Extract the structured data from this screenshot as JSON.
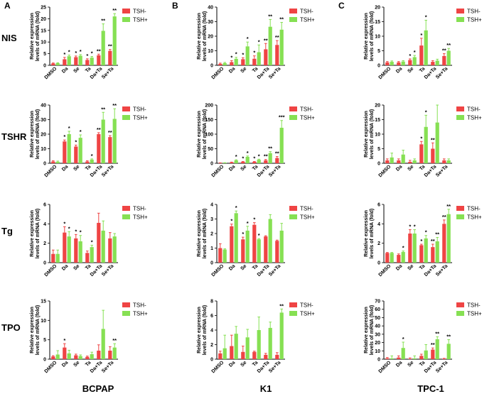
{
  "figure": {
    "panel_labels": [
      "A",
      "B",
      "C"
    ],
    "row_labels": [
      "NIS",
      "TSHR",
      "Tg",
      "TPO"
    ],
    "column_labels": [
      "BCPAP",
      "K1",
      "TPC-1"
    ],
    "colors": {
      "tsh_minus": "#ef4444",
      "tsh_plus": "#86e053"
    }
  },
  "chart_data": [
    {
      "type": "bar",
      "row": "NIS",
      "column": "BCPAP",
      "categories": [
        "DMSO",
        "Da",
        "Se",
        "Ta",
        "Da+Ta",
        "Se+Ta"
      ],
      "ylabel": "Relative expression levels of mRNA (fold)",
      "ylim": [
        0,
        25
      ],
      "yticks": [
        0,
        5,
        10,
        15,
        20,
        25
      ],
      "legend": "top-right",
      "series": [
        {
          "name": "TSH-",
          "values": [
            0.8,
            2.6,
            3.5,
            2.3,
            4.3,
            6.2
          ],
          "errors": [
            0.2,
            0.8,
            0.5,
            0.5,
            0.5,
            0.6
          ],
          "marks": [
            "",
            "*",
            "*",
            "*",
            "**",
            "**"
          ]
        },
        {
          "name": "TSH+",
          "values": [
            0.9,
            3.9,
            4.1,
            3.3,
            14.8,
            21.0
          ],
          "errors": [
            0.2,
            0.5,
            0.5,
            0.5,
            3.0,
            1.2
          ],
          "marks": [
            "",
            "*",
            "*",
            "*",
            "**",
            "**"
          ]
        }
      ]
    },
    {
      "type": "bar",
      "row": "NIS",
      "column": "K1",
      "categories": [
        "DMSO",
        "Da",
        "Se",
        "Ta",
        "Da+Ta",
        "Se+Ta"
      ],
      "ylabel": "Relative expression levels of mRNA (fold)",
      "ylim": [
        0,
        40
      ],
      "yticks": [
        0,
        10,
        20,
        30,
        40
      ],
      "legend": "top-right",
      "series": [
        {
          "name": "TSH-",
          "values": [
            1.0,
            2.2,
            4.2,
            4.5,
            11.0,
            14.0
          ],
          "errors": [
            0.5,
            1.0,
            1.0,
            2.0,
            4.0,
            3.0
          ],
          "marks": [
            "",
            "*",
            "*",
            "*",
            "**",
            "**"
          ]
        },
        {
          "name": "TSH+",
          "values": [
            1.5,
            4.5,
            13.0,
            9.0,
            26.5,
            24.5
          ],
          "errors": [
            0.5,
            1.0,
            3.0,
            5.0,
            5.0,
            5.0
          ],
          "marks": [
            "",
            "*",
            "*",
            "*",
            "**",
            "**"
          ]
        }
      ]
    },
    {
      "type": "bar",
      "row": "NIS",
      "column": "TPC-1",
      "categories": [
        "DMSO",
        "Da",
        "Se",
        "Ta",
        "Da+Ta",
        "Se+Ta"
      ],
      "ylabel": "Relative expression levels of mRNA (fold)",
      "ylim": [
        0,
        20
      ],
      "yticks": [
        0,
        5,
        10,
        15,
        20
      ],
      "legend": "top-right",
      "series": [
        {
          "name": "TSH-",
          "values": [
            1.0,
            1.0,
            1.8,
            6.8,
            1.2,
            3.2
          ],
          "errors": [
            0.3,
            0.3,
            0.4,
            2.5,
            0.4,
            0.8
          ],
          "marks": [
            "",
            "",
            "*",
            "*",
            "",
            "**"
          ]
        },
        {
          "name": "TSH+",
          "values": [
            1.2,
            1.3,
            2.8,
            12.0,
            1.6,
            5.0
          ],
          "errors": [
            0.3,
            0.3,
            0.6,
            3.5,
            0.5,
            0.8
          ],
          "marks": [
            "",
            "",
            "*",
            "*",
            "",
            "**"
          ]
        }
      ]
    },
    {
      "type": "bar",
      "row": "TSHR",
      "column": "BCPAP",
      "categories": [
        "DMSO",
        "Da",
        "Se",
        "Ta",
        "Da+Ta",
        "Se+Ta"
      ],
      "ylabel": "Relative expression levels of mRNA (fold)",
      "ylim": [
        0,
        40
      ],
      "yticks": [
        0,
        10,
        20,
        30,
        40
      ],
      "legend": "top-right",
      "series": [
        {
          "name": "TSH-",
          "values": [
            1.2,
            15.0,
            11.5,
            1.2,
            20.0,
            18.0
          ],
          "errors": [
            0.5,
            1.0,
            1.0,
            0.5,
            1.0,
            1.0
          ],
          "marks": [
            "",
            "*",
            "*",
            "",
            "**",
            "**"
          ]
        },
        {
          "name": "TSH+",
          "values": [
            1.0,
            20.0,
            17.5,
            2.5,
            30.0,
            30.5
          ],
          "errors": [
            0.5,
            2.0,
            2.0,
            0.5,
            5.0,
            7.0
          ],
          "marks": [
            "",
            "*",
            "*",
            "*",
            "**",
            "**"
          ]
        }
      ]
    },
    {
      "type": "bar",
      "row": "TSHR",
      "column": "K1",
      "categories": [
        "DMSO",
        "Da",
        "Se",
        "Ta",
        "Da+Ta",
        "Se+Ta"
      ],
      "ylabel": "Relative expression levels of mRNA (fold)",
      "ylim": [
        0,
        200
      ],
      "yticks": [
        0,
        50,
        100,
        150,
        200
      ],
      "legend": "top-right",
      "series": [
        {
          "name": "TSH-",
          "values": [
            1.0,
            3.0,
            5.0,
            5.0,
            10.0,
            18.0
          ],
          "errors": [
            0.5,
            1.0,
            1.0,
            1.0,
            3.0,
            5.0
          ],
          "marks": [
            "",
            "",
            "*",
            "*",
            "**",
            "**"
          ]
        },
        {
          "name": "TSH+",
          "values": [
            1.5,
            10.0,
            22.0,
            12.0,
            35.0,
            122.0
          ],
          "errors": [
            0.5,
            2.0,
            3.0,
            2.0,
            5.0,
            25.0
          ],
          "marks": [
            "",
            "*",
            "*",
            "*",
            "**",
            "***"
          ]
        }
      ]
    },
    {
      "type": "bar",
      "row": "TSHR",
      "column": "TPC-1",
      "categories": [
        "DMSO",
        "Da",
        "Se",
        "Ta",
        "Da+Ta",
        "Se+Ta"
      ],
      "ylabel": "Relative expression levels of mRNA (fold)",
      "ylim": [
        0,
        20
      ],
      "yticks": [
        0,
        5,
        10,
        15,
        20
      ],
      "legend": "top-right",
      "series": [
        {
          "name": "TSH-",
          "values": [
            1.0,
            1.0,
            0.5,
            6.5,
            5.0,
            1.0
          ],
          "errors": [
            0.5,
            0.5,
            0.5,
            1.0,
            2.0,
            0.5
          ],
          "marks": [
            "",
            "",
            "",
            "*",
            "**",
            ""
          ]
        },
        {
          "name": "TSH+",
          "values": [
            2.0,
            3.0,
            1.0,
            12.5,
            14.0,
            1.0
          ],
          "errors": [
            1.5,
            1.5,
            0.5,
            4.0,
            6.0,
            0.5
          ],
          "marks": [
            "",
            "",
            "",
            "*",
            "",
            ""
          ]
        }
      ]
    },
    {
      "type": "bar",
      "row": "Tg",
      "column": "BCPAP",
      "categories": [
        "DMSO",
        "Da",
        "Se",
        "Ta",
        "Da+Ta",
        "Se+Ta"
      ],
      "ylabel": "Relative expression levels of mRNA (fold)",
      "ylim": [
        0,
        6
      ],
      "yticks": [
        0,
        2,
        4,
        6
      ],
      "legend": "top-right",
      "series": [
        {
          "name": "TSH-",
          "values": [
            0.9,
            3.1,
            2.5,
            1.0,
            4.1,
            2.5
          ],
          "errors": [
            0.4,
            0.6,
            0.4,
            0.2,
            1.0,
            0.6
          ],
          "marks": [
            "",
            "*",
            "*",
            "",
            "",
            ""
          ]
        },
        {
          "name": "TSH+",
          "values": [
            0.9,
            2.7,
            2.2,
            1.6,
            3.3,
            2.7
          ],
          "errors": [
            0.4,
            0.5,
            0.6,
            0.2,
            1.0,
            0.3
          ],
          "marks": [
            "",
            "*",
            "*",
            "*",
            "",
            ""
          ]
        }
      ]
    },
    {
      "type": "bar",
      "row": "Tg",
      "column": "K1",
      "categories": [
        "DMSO",
        "Da",
        "Se",
        "Ta",
        "Da+Ta",
        "Se+Ta"
      ],
      "ylabel": "Relative expression levels of mRNA (fold)",
      "ylim": [
        0,
        4
      ],
      "yticks": [
        0,
        1,
        2,
        3,
        4
      ],
      "legend": "top-right",
      "series": [
        {
          "name": "TSH-",
          "values": [
            1.0,
            2.5,
            1.6,
            2.6,
            1.8,
            1.5
          ],
          "errors": [
            0.3,
            0.15,
            0.15,
            0.15,
            0.05,
            0.05
          ],
          "marks": [
            "",
            "*",
            "*",
            "*",
            "",
            ""
          ]
        },
        {
          "name": "TSH+",
          "values": [
            0.9,
            3.4,
            2.2,
            1.6,
            3.0,
            2.2
          ],
          "errors": [
            0.05,
            0.15,
            0.3,
            0.05,
            0.3,
            0.5
          ],
          "marks": [
            "",
            "*",
            "*",
            "*",
            "",
            ""
          ]
        }
      ]
    },
    {
      "type": "bar",
      "row": "Tg",
      "column": "TPC-1",
      "categories": [
        "DMSO",
        "Da",
        "Se",
        "Ta",
        "Da+Ta",
        "Se+Ta"
      ],
      "ylabel": "Relative expression levels of mRNA (fold)",
      "ylim": [
        0,
        6
      ],
      "yticks": [
        0,
        2,
        4,
        6
      ],
      "legend": "top-right",
      "series": [
        {
          "name": "TSH-",
          "values": [
            1.0,
            0.8,
            3.0,
            1.8,
            1.6,
            4.0
          ],
          "errors": [
            0.05,
            0.1,
            0.4,
            0.1,
            0.3,
            0.4
          ],
          "marks": [
            "",
            "",
            "*",
            "*",
            "**",
            "**"
          ]
        },
        {
          "name": "TSH+",
          "values": [
            1.0,
            1.1,
            3.0,
            2.5,
            2.2,
            5.0
          ],
          "errors": [
            0.05,
            0.1,
            0.4,
            0.3,
            0.4,
            0.5
          ],
          "marks": [
            "",
            "*",
            "*",
            "*",
            "**",
            "**"
          ]
        }
      ]
    },
    {
      "type": "bar",
      "row": "TPO",
      "column": "BCPAP",
      "categories": [
        "DMSO",
        "Da",
        "Se",
        "Ta",
        "Da+Ta",
        "Se+Ta"
      ],
      "ylabel": "Relative expression levels of mRNA (fold)",
      "ylim": [
        0,
        15
      ],
      "yticks": [
        0,
        5,
        10,
        15
      ],
      "legend": "top-right",
      "series": [
        {
          "name": "TSH-",
          "values": [
            0.7,
            3.0,
            1.0,
            0.6,
            2.2,
            2.2
          ],
          "errors": [
            0.2,
            1.0,
            0.3,
            0.2,
            1.5,
            1.0
          ],
          "marks": [
            "",
            "*",
            "",
            "",
            "",
            ""
          ]
        },
        {
          "name": "TSH+",
          "values": [
            1.2,
            1.5,
            0.8,
            1.3,
            7.8,
            3.0
          ],
          "errors": [
            1.0,
            0.8,
            0.3,
            0.5,
            4.8,
            1.0
          ],
          "marks": [
            "",
            "",
            "",
            "",
            "",
            "**"
          ]
        }
      ]
    },
    {
      "type": "bar",
      "row": "TPO",
      "column": "K1",
      "categories": [
        "DMSO",
        "Da",
        "Se",
        "Ta",
        "Da+Ta",
        "Se+Ta"
      ],
      "ylabel": "Relative expression levels of mRNA (fold)",
      "ylim": [
        0,
        8
      ],
      "yticks": [
        0,
        2,
        4,
        6,
        8
      ],
      "legend": "top-right",
      "series": [
        {
          "name": "TSH-",
          "values": [
            0.8,
            1.8,
            1.0,
            1.0,
            0.6,
            0.6
          ],
          "errors": [
            0.3,
            1.5,
            0.8,
            0.1,
            0.2,
            0.3
          ],
          "marks": [
            "",
            "",
            "",
            "",
            "",
            ""
          ]
        },
        {
          "name": "TSH+",
          "values": [
            1.5,
            3.5,
            3.0,
            4.0,
            4.3,
            6.4
          ],
          "errors": [
            1.8,
            1.0,
            1.1,
            1.8,
            0.8,
            0.5
          ],
          "marks": [
            "",
            "",
            "",
            "",
            "",
            "**"
          ]
        }
      ]
    },
    {
      "type": "bar",
      "row": "TPO",
      "column": "TPC-1",
      "categories": [
        "DMSO",
        "Da",
        "Se",
        "Ta",
        "Da+Ta",
        "Se+Ta"
      ],
      "ylabel": "Relative expression levels of mRNA (fold)",
      "ylim": [
        0,
        70
      ],
      "yticks": [
        0,
        10,
        20,
        30,
        40,
        50,
        60,
        70
      ],
      "legend": "top-right",
      "series": [
        {
          "name": "TSH-",
          "values": [
            1.0,
            2.0,
            0.5,
            4.0,
            11.5,
            0.5
          ],
          "errors": [
            1.0,
            2.0,
            1.0,
            2.0,
            2.0,
            0.5
          ],
          "marks": [
            "",
            "",
            "",
            "",
            "**",
            ""
          ]
        },
        {
          "name": "TSH+",
          "values": [
            1.0,
            13.5,
            1.0,
            10.5,
            24.0,
            18.5
          ],
          "errors": [
            3.0,
            7.0,
            3.0,
            7.0,
            3.0,
            5.0
          ],
          "marks": [
            "",
            "*",
            "",
            "",
            "**",
            "**"
          ]
        }
      ]
    }
  ]
}
